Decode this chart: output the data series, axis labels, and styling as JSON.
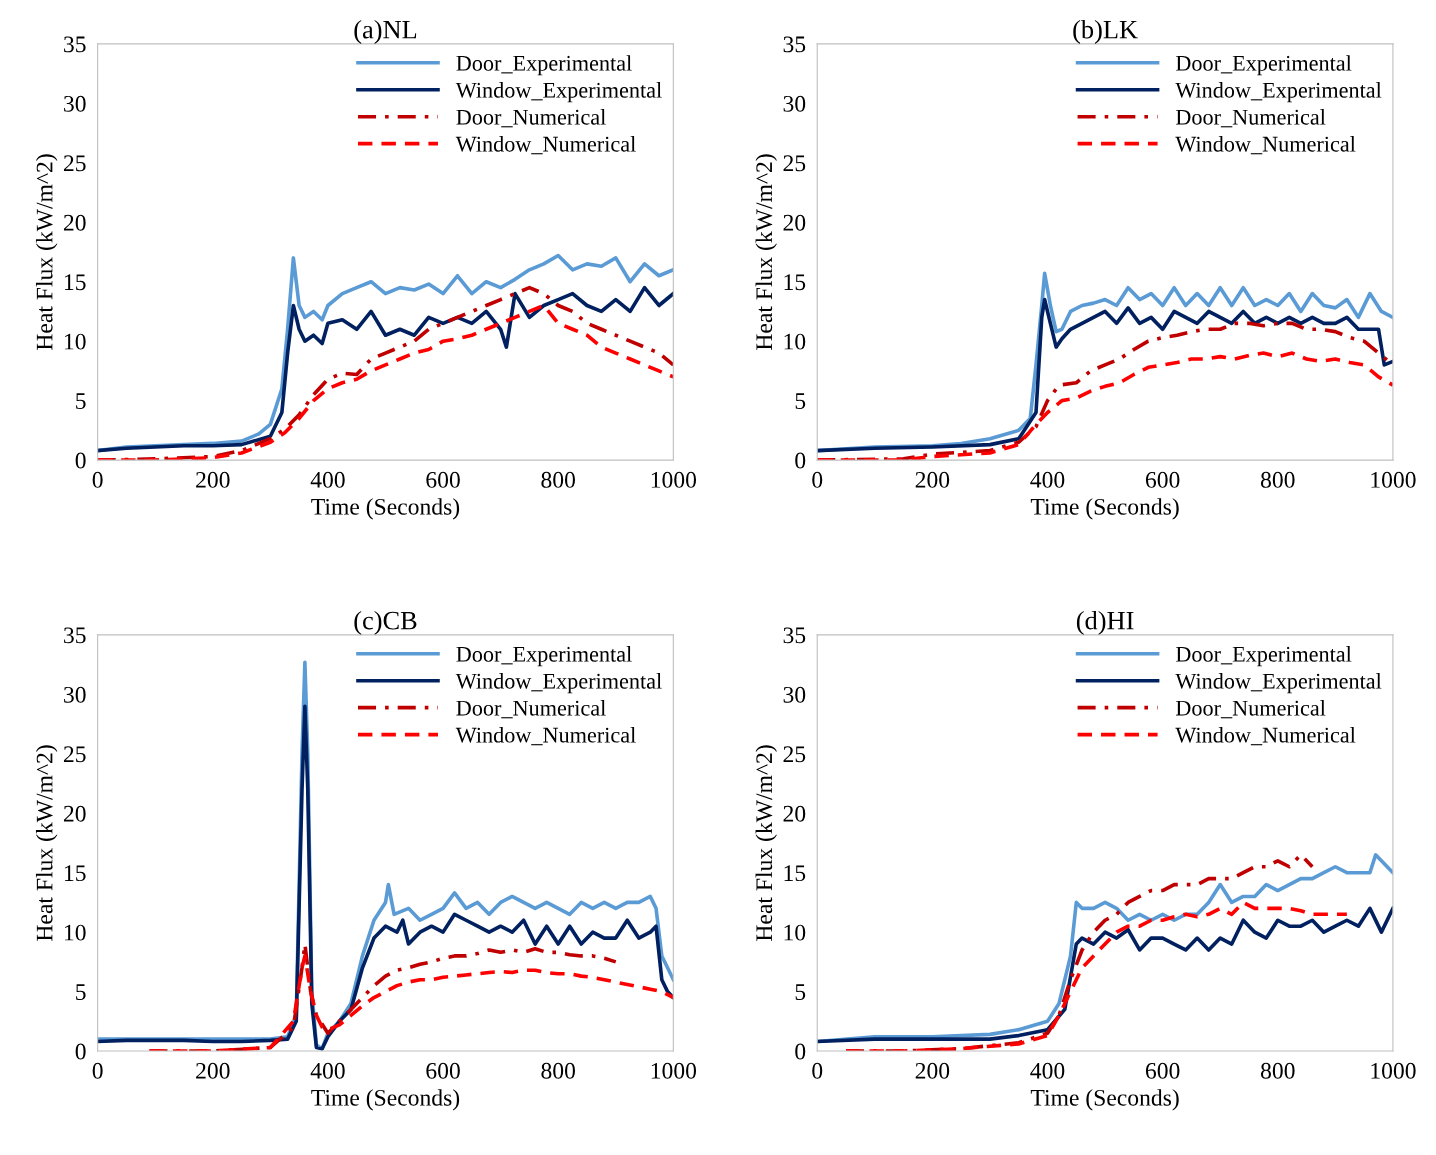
{
  "chart_data": [
    {
      "type": "line",
      "title": "(a)NL",
      "xlabel": "Time (Seconds)",
      "ylabel": "Heat Flux (kW/m^2)",
      "xlim": [
        0,
        1000
      ],
      "xticks": [
        0,
        200,
        400,
        600,
        800,
        1000
      ],
      "ylim": [
        0,
        35
      ],
      "yticks": [
        0,
        5,
        10,
        15,
        20,
        25,
        30,
        35
      ],
      "grid": false,
      "legend": "top right",
      "series": [
        {
          "name": "Door_Experimental",
          "color": "#5b9bd5",
          "line_style": "solid",
          "x": [
            0,
            50,
            100,
            150,
            200,
            250,
            280,
            300,
            320,
            330,
            340,
            350,
            360,
            375,
            390,
            400,
            425,
            450,
            475,
            500,
            525,
            550,
            575,
            600,
            625,
            650,
            675,
            700,
            725,
            750,
            775,
            800,
            825,
            850,
            875,
            900,
            925,
            950,
            975,
            1000
          ],
          "values": [
            0.8,
            1.1,
            1.2,
            1.3,
            1.4,
            1.6,
            2.2,
            3,
            6,
            11,
            17,
            13,
            12,
            12.5,
            11.8,
            13,
            14,
            14.5,
            15,
            14,
            14.5,
            14.3,
            14.8,
            14,
            15.5,
            14,
            15,
            14.5,
            15.2,
            16,
            16.5,
            17.2,
            16,
            16.5,
            16.3,
            17,
            15,
            16.5,
            15.5,
            16
          ]
        },
        {
          "name": "Window_Experimental",
          "color": "#002060",
          "line_style": "solid",
          "x": [
            0,
            50,
            100,
            150,
            200,
            250,
            300,
            320,
            330,
            340,
            350,
            360,
            375,
            390,
            400,
            425,
            450,
            475,
            500,
            525,
            550,
            575,
            600,
            625,
            650,
            675,
            700,
            710,
            725,
            750,
            775,
            800,
            825,
            850,
            875,
            900,
            925,
            950,
            975,
            1000
          ],
          "values": [
            0.8,
            1,
            1.1,
            1.2,
            1.2,
            1.3,
            2,
            4,
            9,
            13,
            11,
            10,
            10.5,
            9.8,
            11.5,
            11.8,
            11,
            12.5,
            10.5,
            11,
            10.5,
            12,
            11.5,
            12,
            11.5,
            12.5,
            11,
            9.5,
            14,
            12,
            13,
            13.5,
            14,
            13,
            12.5,
            13.5,
            12.5,
            14.5,
            13,
            14
          ]
        },
        {
          "name": "Door_Numerical",
          "color": "#c00000",
          "line_style": "dashdot",
          "x": [
            0,
            100,
            200,
            250,
            300,
            325,
            350,
            375,
            400,
            425,
            450,
            475,
            500,
            525,
            550,
            575,
            600,
            625,
            650,
            675,
            700,
            725,
            750,
            775,
            800,
            825,
            850,
            875,
            900,
            925,
            950,
            975,
            1000
          ],
          "values": [
            0,
            0.1,
            0.3,
            0.8,
            1.8,
            2.6,
            3.8,
            5.5,
            6.8,
            7.3,
            7.2,
            8.5,
            9,
            9.5,
            10,
            11,
            11.5,
            12,
            12.5,
            13,
            13.5,
            14,
            14.5,
            14,
            13,
            12.5,
            11.5,
            11,
            10.5,
            10,
            9.5,
            9,
            8
          ]
        },
        {
          "name": "Window_Numerical",
          "color": "#ff0000",
          "line_style": "dashed",
          "x": [
            0,
            100,
            200,
            250,
            300,
            325,
            350,
            375,
            400,
            425,
            450,
            475,
            500,
            525,
            550,
            575,
            600,
            625,
            650,
            675,
            700,
            725,
            750,
            775,
            800,
            825,
            850,
            875,
            900,
            925,
            950,
            975,
            1000
          ],
          "values": [
            0,
            0,
            0.2,
            0.6,
            1.5,
            2.3,
            3.5,
            5,
            6,
            6.5,
            6.8,
            7.5,
            8,
            8.5,
            9,
            9.3,
            10,
            10.2,
            10.5,
            11,
            11.5,
            12,
            12.5,
            13,
            11.5,
            11,
            10.5,
            9.5,
            9,
            8.5,
            8,
            7.5,
            7
          ]
        }
      ]
    },
    {
      "type": "line",
      "title": "(b)LK",
      "xlabel": "Time (Seconds)",
      "ylabel": "Heat Flux (kW/m^2)",
      "xlim": [
        0,
        1000
      ],
      "xticks": [
        0,
        200,
        400,
        600,
        800,
        1000
      ],
      "ylim": [
        0,
        35
      ],
      "yticks": [
        0,
        5,
        10,
        15,
        20,
        25,
        30,
        35
      ],
      "grid": false,
      "legend": "top right",
      "series": [
        {
          "name": "Door_Experimental",
          "color": "#5b9bd5",
          "line_style": "solid",
          "x": [
            0,
            100,
            200,
            250,
            300,
            350,
            370,
            380,
            390,
            395,
            405,
            415,
            425,
            440,
            460,
            480,
            500,
            520,
            540,
            560,
            580,
            600,
            620,
            640,
            660,
            680,
            700,
            720,
            740,
            760,
            780,
            800,
            820,
            840,
            860,
            880,
            900,
            920,
            940,
            960,
            980,
            1000
          ],
          "values": [
            0.8,
            1.1,
            1.2,
            1.4,
            1.8,
            2.5,
            3.5,
            8,
            13,
            15.7,
            13,
            10.8,
            11,
            12.5,
            13,
            13.2,
            13.5,
            13,
            14.5,
            13.5,
            14,
            13,
            14.5,
            13,
            14,
            13,
            14.5,
            13,
            14.5,
            13,
            13.5,
            13,
            14,
            12.5,
            14,
            13,
            12.8,
            13.5,
            12,
            14,
            12.5,
            12
          ]
        },
        {
          "name": "Window_Experimental",
          "color": "#002060",
          "line_style": "solid",
          "x": [
            0,
            100,
            200,
            300,
            350,
            380,
            390,
            395,
            405,
            415,
            425,
            440,
            460,
            480,
            500,
            520,
            540,
            560,
            580,
            600,
            620,
            640,
            660,
            680,
            700,
            720,
            740,
            760,
            780,
            800,
            820,
            840,
            860,
            880,
            900,
            920,
            940,
            960,
            975,
            985,
            1000
          ],
          "values": [
            0.8,
            1,
            1.1,
            1.3,
            1.8,
            4,
            12,
            13.5,
            11.5,
            9.5,
            10.2,
            11,
            11.5,
            12,
            12.5,
            11.5,
            12.8,
            11.5,
            12,
            11,
            12.5,
            12,
            11.5,
            12.5,
            12,
            11.5,
            12.5,
            11.5,
            12,
            11.5,
            12,
            11.5,
            12,
            11.5,
            11.5,
            12,
            11,
            11,
            11,
            8,
            8.3
          ]
        },
        {
          "name": "Door_Numerical",
          "color": "#c00000",
          "line_style": "dashdot",
          "x": [
            0,
            150,
            200,
            300,
            350,
            380,
            400,
            420,
            450,
            475,
            500,
            525,
            550,
            575,
            600,
            625,
            650,
            675,
            700,
            725,
            750,
            775,
            800,
            825,
            850,
            875,
            900,
            925,
            950,
            975,
            1000
          ],
          "values": [
            0,
            0.1,
            0.5,
            0.8,
            1.5,
            2.8,
            5,
            6.3,
            6.5,
            7.5,
            8,
            8.5,
            9.3,
            10,
            10.3,
            10.5,
            10.8,
            11,
            11,
            11.5,
            11.5,
            11.3,
            11.5,
            11.5,
            11,
            11,
            10.8,
            10.3,
            10,
            9,
            8
          ]
        },
        {
          "name": "Window_Numerical",
          "color": "#ff0000",
          "line_style": "dashed",
          "x": [
            0,
            150,
            200,
            300,
            350,
            380,
            400,
            425,
            450,
            475,
            500,
            525,
            550,
            575,
            600,
            625,
            650,
            675,
            700,
            725,
            750,
            775,
            800,
            825,
            850,
            875,
            900,
            925,
            950,
            975,
            1000
          ],
          "values": [
            0,
            0,
            0.3,
            0.6,
            1.3,
            3,
            4,
            5,
            5.2,
            5.8,
            6.2,
            6.5,
            7.2,
            7.8,
            8,
            8.2,
            8.5,
            8.5,
            8.7,
            8.5,
            8.8,
            9,
            8.7,
            9,
            8.5,
            8.3,
            8.5,
            8.2,
            8,
            7,
            6.3
          ]
        }
      ]
    },
    {
      "type": "line",
      "title": "(c)CB",
      "xlabel": "Time (Seconds)",
      "ylabel": "Heat Flux (kW/m^2)",
      "xlim": [
        0,
        1000
      ],
      "xticks": [
        0,
        200,
        400,
        600,
        800,
        1000
      ],
      "ylim": [
        0,
        35
      ],
      "yticks": [
        0,
        5,
        10,
        15,
        20,
        25,
        30,
        35
      ],
      "grid": false,
      "legend": "top right",
      "series": [
        {
          "name": "Door_Experimental",
          "color": "#5b9bd5",
          "line_style": "solid",
          "x": [
            0,
            50,
            100,
            150,
            200,
            250,
            300,
            330,
            345,
            355,
            360,
            365,
            372,
            380,
            390,
            400,
            420,
            440,
            460,
            480,
            500,
            505,
            515,
            540,
            560,
            580,
            600,
            620,
            640,
            660,
            680,
            700,
            720,
            740,
            760,
            780,
            800,
            820,
            840,
            860,
            880,
            900,
            920,
            940,
            960,
            970,
            980,
            990,
            1000
          ],
          "values": [
            1,
            1,
            1,
            1,
            1,
            1,
            1,
            1.2,
            3,
            25,
            32.7,
            25,
            5,
            0.5,
            0.2,
            1.5,
            2.5,
            4,
            8,
            11,
            12.5,
            14,
            11.5,
            12,
            11,
            11.5,
            12,
            13.3,
            12,
            12.5,
            11.5,
            12.5,
            13,
            12.5,
            12,
            12.5,
            12,
            11.5,
            12.5,
            12,
            12.5,
            12,
            12.5,
            12.5,
            13,
            12,
            8,
            7,
            6
          ]
        },
        {
          "name": "Window_Experimental",
          "color": "#002060",
          "line_style": "solid",
          "x": [
            0,
            50,
            100,
            150,
            200,
            250,
            300,
            330,
            345,
            355,
            360,
            365,
            372,
            380,
            390,
            400,
            420,
            440,
            460,
            480,
            500,
            520,
            530,
            540,
            560,
            580,
            600,
            620,
            640,
            660,
            680,
            700,
            720,
            740,
            760,
            780,
            800,
            820,
            840,
            860,
            880,
            900,
            920,
            940,
            960,
            970,
            980,
            990,
            1000
          ],
          "values": [
            0.8,
            0.9,
            0.9,
            0.9,
            0.8,
            0.8,
            0.9,
            1,
            2.5,
            22,
            29,
            22,
            4,
            0.3,
            0.2,
            1.2,
            2.5,
            3.5,
            7,
            9.5,
            10.5,
            10,
            11,
            9,
            10,
            10.5,
            10,
            11.5,
            11,
            10.5,
            10,
            10.5,
            10,
            11,
            9,
            10.5,
            9,
            10.5,
            9,
            10,
            9.5,
            9.5,
            11,
            9.5,
            10,
            10.5,
            6,
            5,
            4.5
          ]
        },
        {
          "name": "Door_Numerical",
          "color": "#c00000",
          "line_style": "dashdot",
          "x": [
            90,
            200,
            300,
            340,
            355,
            360,
            370,
            380,
            400,
            420,
            440,
            460,
            480,
            500,
            520,
            540,
            560,
            580,
            600,
            620,
            640,
            660,
            680,
            700,
            720,
            740,
            760,
            780,
            800,
            820,
            840,
            860,
            880,
            900
          ],
          "values": [
            0,
            0,
            0.3,
            2,
            7,
            9,
            5,
            3,
            1.5,
            2.5,
            3.5,
            4.5,
            5.5,
            6.3,
            6.8,
            7,
            7.3,
            7.5,
            7.8,
            8,
            8,
            8.2,
            8.5,
            8.3,
            8.5,
            8.3,
            8.6,
            8.3,
            8.3,
            8.1,
            8,
            8,
            7.8,
            7.5
          ]
        },
        {
          "name": "Window_Numerical",
          "color": "#ff0000",
          "line_style": "dashed",
          "x": [
            90,
            200,
            300,
            340,
            355,
            360,
            370,
            380,
            390,
            400,
            420,
            440,
            460,
            480,
            500,
            520,
            540,
            560,
            580,
            600,
            620,
            640,
            660,
            680,
            700,
            720,
            740,
            760,
            780,
            800,
            820,
            840,
            860,
            880,
            900,
            920,
            940,
            960,
            980,
            1000
          ],
          "values": [
            0,
            0,
            0.3,
            2.5,
            7,
            8,
            5,
            3,
            2,
            1.8,
            2.2,
            3,
            3.8,
            4.5,
            5,
            5.5,
            5.8,
            6,
            6,
            6.2,
            6.3,
            6.4,
            6.5,
            6.6,
            6.7,
            6.6,
            6.8,
            6.8,
            6.6,
            6.5,
            6.5,
            6.3,
            6.2,
            6,
            5.8,
            5.6,
            5.4,
            5.2,
            5,
            4.5
          ]
        }
      ]
    },
    {
      "type": "line",
      "title": "(d)HI",
      "xlabel": "Time (Seconds)",
      "ylabel": "Heat Flux (kW/m^2)",
      "xlim": [
        0,
        1000
      ],
      "xticks": [
        0,
        200,
        400,
        600,
        800,
        1000
      ],
      "ylim": [
        0,
        35
      ],
      "yticks": [
        0,
        5,
        10,
        15,
        20,
        25,
        30,
        35
      ],
      "grid": false,
      "legend": "top right",
      "series": [
        {
          "name": "Door_Experimental",
          "color": "#5b9bd5",
          "line_style": "solid",
          "x": [
            0,
            100,
            200,
            300,
            350,
            400,
            420,
            440,
            450,
            460,
            480,
            500,
            520,
            540,
            560,
            580,
            600,
            620,
            640,
            660,
            680,
            700,
            720,
            740,
            760,
            780,
            800,
            820,
            840,
            860,
            880,
            900,
            920,
            940,
            960,
            970,
            980,
            1000
          ],
          "values": [
            0.8,
            1.2,
            1.2,
            1.4,
            1.8,
            2.5,
            4,
            8,
            12.5,
            12,
            12,
            12.5,
            12,
            11,
            11.5,
            11,
            11.5,
            11,
            11.5,
            11.5,
            12.5,
            14,
            12.5,
            13,
            13,
            14,
            13.5,
            14,
            14.5,
            14.5,
            15,
            15.5,
            15,
            15,
            15,
            16.5,
            16,
            15
          ]
        },
        {
          "name": "Window_Experimental",
          "color": "#002060",
          "line_style": "solid",
          "x": [
            0,
            100,
            200,
            300,
            350,
            400,
            430,
            450,
            460,
            480,
            500,
            520,
            540,
            560,
            580,
            600,
            620,
            640,
            660,
            680,
            700,
            720,
            740,
            760,
            780,
            800,
            820,
            840,
            860,
            880,
            900,
            920,
            940,
            960,
            980,
            1000
          ],
          "values": [
            0.8,
            1,
            1,
            1,
            1.3,
            1.8,
            3.5,
            9,
            9.5,
            9,
            10,
            9.5,
            10.2,
            8.5,
            9.5,
            9.5,
            9,
            8.5,
            9.5,
            8.5,
            9.5,
            9,
            11,
            10,
            9.5,
            11,
            10.5,
            10.5,
            11,
            10,
            10.5,
            11,
            10.5,
            12,
            10,
            12
          ]
        },
        {
          "name": "Door_Numerical",
          "color": "#c00000",
          "line_style": "dashdot",
          "x": [
            50,
            150,
            250,
            350,
            400,
            420,
            440,
            460,
            480,
            500,
            520,
            540,
            560,
            580,
            600,
            620,
            640,
            660,
            680,
            700,
            720,
            740,
            760,
            780,
            800,
            820,
            840,
            860
          ],
          "values": [
            0,
            0,
            0.2,
            0.7,
            1.5,
            3,
            6,
            8.5,
            10,
            11,
            11.5,
            12.5,
            13,
            13.5,
            13.5,
            14,
            14,
            14,
            14.5,
            14.5,
            14.5,
            15,
            15.5,
            15.5,
            16,
            15.5,
            16.5,
            15.5
          ]
        },
        {
          "name": "Window_Numerical",
          "color": "#ff0000",
          "line_style": "dashed",
          "x": [
            50,
            150,
            250,
            350,
            400,
            420,
            440,
            460,
            480,
            500,
            520,
            540,
            560,
            580,
            600,
            620,
            640,
            660,
            680,
            700,
            720,
            740,
            760,
            780,
            800,
            820,
            840,
            860,
            880,
            900,
            920
          ],
          "values": [
            0,
            0,
            0.2,
            0.6,
            1.3,
            3,
            5,
            7,
            8,
            9,
            10,
            10.5,
            10.5,
            11,
            11,
            11.3,
            11.5,
            11.3,
            11.5,
            12,
            11.5,
            12.5,
            12,
            12,
            12,
            12,
            11.8,
            11.5,
            11.5,
            11.5,
            11.5
          ]
        }
      ]
    }
  ]
}
